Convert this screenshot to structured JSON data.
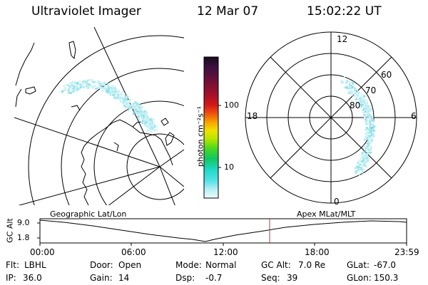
{
  "header": {
    "title": "Ultraviolet Imager",
    "date": "12 Mar 07",
    "time": "15:02:22 UT"
  },
  "colorbar": {
    "unit_label": "photon cm⁻²s⁻¹",
    "ticks": [
      "100",
      "10"
    ],
    "colors": [
      "#1a0a1e",
      "#3a1040",
      "#6a0f3a",
      "#a0102a",
      "#d41818",
      "#f05010",
      "#f7a000",
      "#f2e000",
      "#b8e600",
      "#48d820",
      "#10c860",
      "#20d8c8",
      "#58e2ea",
      "#b8f0f2",
      "#ecfbfb"
    ]
  },
  "right_plot": {
    "mlt_labels": {
      "top": "12",
      "left": "18",
      "right": "6",
      "bottom": "0"
    },
    "lat_labels": [
      "60",
      "70",
      "80"
    ]
  },
  "timeline": {
    "ylabel": "GC Alt",
    "yticks": [
      "9.0",
      "1.8"
    ],
    "left_label": "Geographic Lat/Lon",
    "right_label": "Apex MLat/MLT",
    "xticks": [
      "00:00",
      "06:00",
      "12:00",
      "18:00",
      "23:59"
    ],
    "marker_color": "#c03040"
  },
  "info": [
    {
      "label": "Flt:",
      "value": "LBHL"
    },
    {
      "label": "Door:",
      "value": "Open"
    },
    {
      "label": "Mode:",
      "value": "Normal"
    },
    {
      "label": "GC Alt:",
      "value": "7.0 Re"
    },
    {
      "label": "GLat:",
      "value": "-67.0"
    },
    {
      "label": "IP:",
      "value": "36.0"
    },
    {
      "label": "Gain:",
      "value": "14"
    },
    {
      "label": "Dsp:",
      "value": "-0.7"
    },
    {
      "label": "Seq:",
      "value": "39"
    },
    {
      "label": "GLon:",
      "value": "150.3"
    }
  ]
}
